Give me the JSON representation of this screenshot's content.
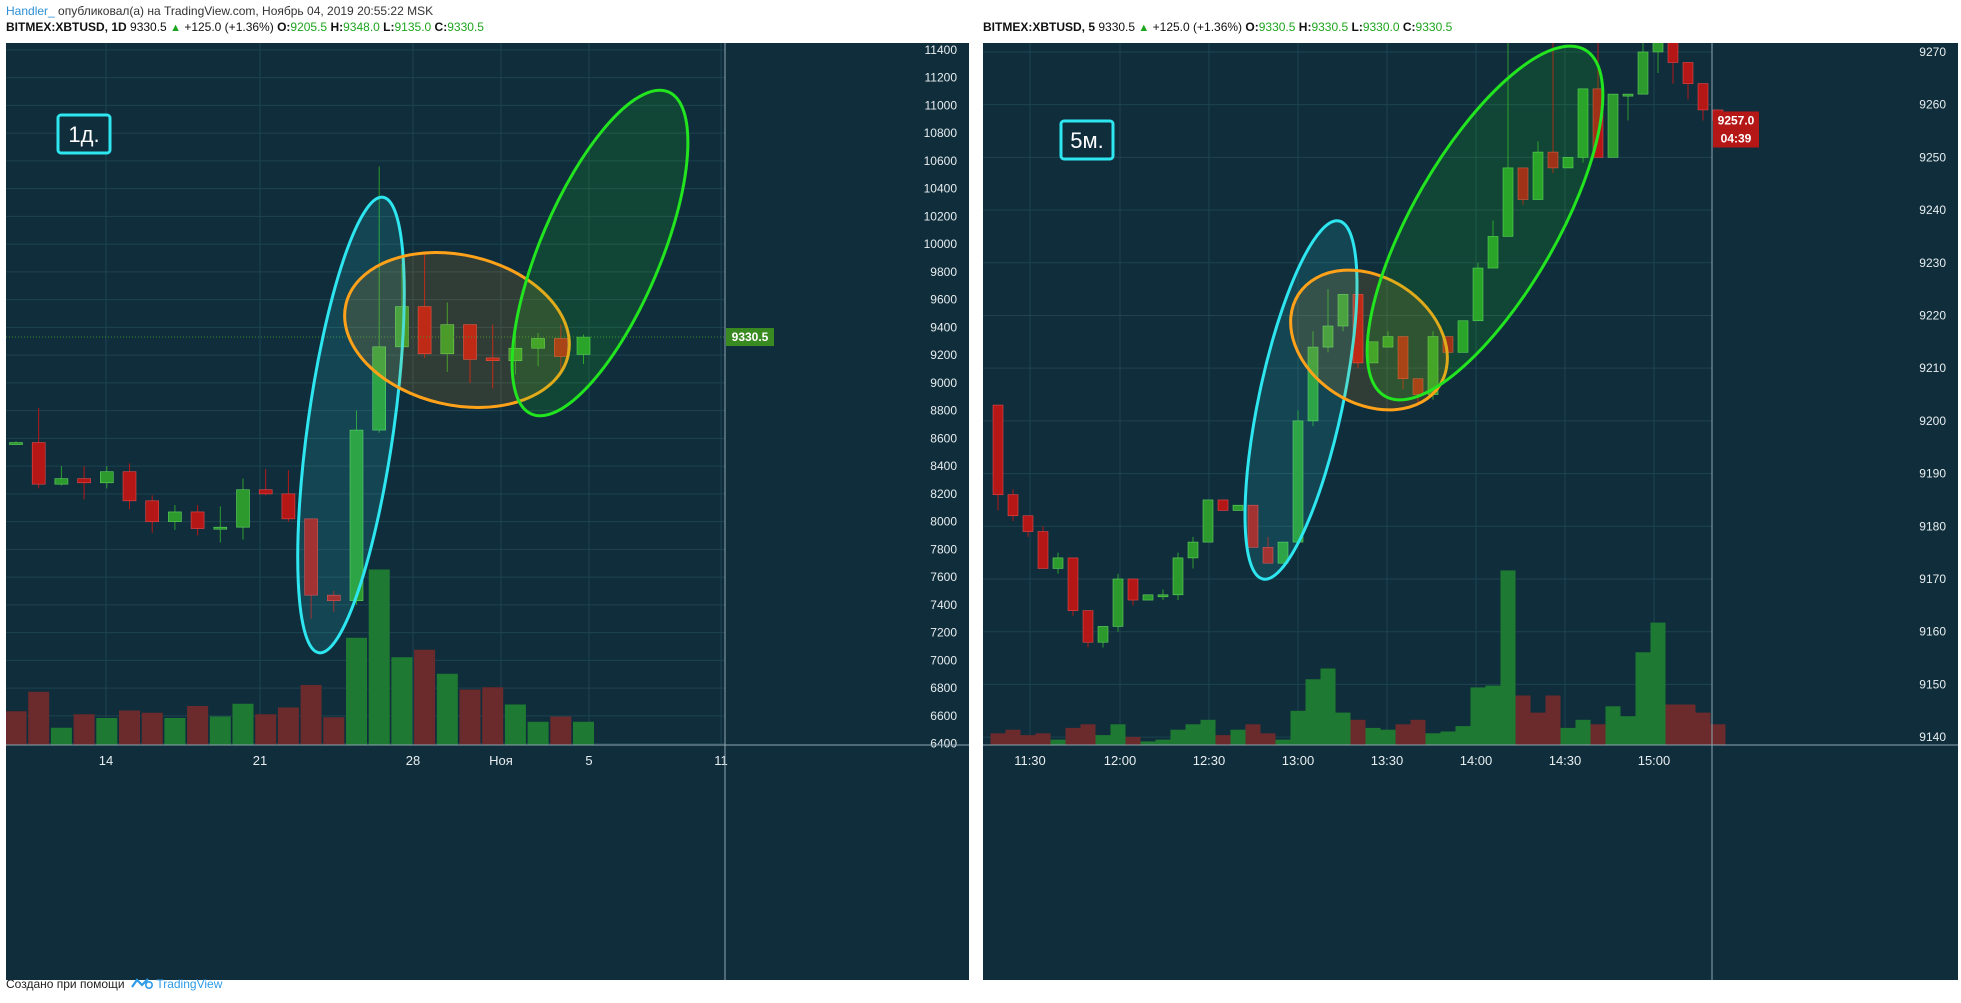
{
  "topbar": {
    "user": "Handler_",
    "text": "опубликовал(а) на TradingView.com, Ноябрь 04, 2019 20:55:22 MSK"
  },
  "left_header": {
    "symbol": "BITMEX:XBTUSD, 1D",
    "price": "9330.5",
    "change": "+125.0 (+1.36%)",
    "o_label": "O:",
    "o": "9205.5",
    "h_label": "H:",
    "h": "9348.0",
    "l_label": "L:",
    "l": "9135.0",
    "c_label": "C:",
    "c": "9330.5"
  },
  "right_header": {
    "symbol": "BITMEX:XBTUSD, 5",
    "price": "9330.5",
    "change": "+125.0 (+1.36%)",
    "o_label": "O:",
    "o": "9330.5",
    "h_label": "H:",
    "h": "9330.5",
    "l_label": "L:",
    "l": "9330.0",
    "c_label": "C:",
    "c": "9330.5"
  },
  "footer": {
    "created_with": "Создано при помощи",
    "brand": "TradingView"
  },
  "colors": {
    "background": "#0f2d3b",
    "grid": "#1f4350",
    "up": "#2d9a2d",
    "down": "#b51717",
    "vol_up": "#1e7a32",
    "vol_down": "#6b2a2c",
    "cyan": "#2ee6f0",
    "orange": "#ffa21a",
    "green_ellipse": "#22e41f",
    "axis_text": "#e8eef0",
    "price_label_left": "#3a8a22",
    "price_label_right": "#b51717"
  },
  "chart_data": [
    {
      "type": "candlestick",
      "timeframe": "1D",
      "annotation_label": "1д.",
      "x_ticks": [
        "14",
        "21",
        "28",
        "Ноя",
        "5",
        "11"
      ],
      "y_ticks": [
        6400,
        6600,
        6800,
        7000,
        7200,
        7400,
        7600,
        7800,
        8000,
        8200,
        8400,
        8600,
        8800,
        9000,
        9200,
        9400,
        9600,
        9800,
        10000,
        10200,
        10400,
        10600,
        10800,
        11000,
        11200,
        11400
      ],
      "ylim": [
        6390,
        11450
      ],
      "last_price_label": "9330.5",
      "candles": [
        {
          "o": 8565,
          "h": 8580,
          "l": 8560,
          "c": 8570
        },
        {
          "o": 8570,
          "h": 8820,
          "l": 8240,
          "c": 8270
        },
        {
          "o": 8270,
          "h": 8400,
          "l": 8260,
          "c": 8310
        },
        {
          "o": 8310,
          "h": 8400,
          "l": 8160,
          "c": 8280
        },
        {
          "o": 8280,
          "h": 8400,
          "l": 8240,
          "c": 8360
        },
        {
          "o": 8360,
          "h": 8420,
          "l": 8090,
          "c": 8150
        },
        {
          "o": 8150,
          "h": 8190,
          "l": 7920,
          "c": 8000
        },
        {
          "o": 8000,
          "h": 8120,
          "l": 7940,
          "c": 8070
        },
        {
          "o": 8070,
          "h": 8120,
          "l": 7900,
          "c": 7950
        },
        {
          "o": 7960,
          "h": 8110,
          "l": 7850,
          "c": 7960
        },
        {
          "o": 7960,
          "h": 8310,
          "l": 7870,
          "c": 8230
        },
        {
          "o": 8230,
          "h": 8380,
          "l": 8190,
          "c": 8200
        },
        {
          "o": 8200,
          "h": 8370,
          "l": 8000,
          "c": 8020
        },
        {
          "o": 8020,
          "h": 8020,
          "l": 7300,
          "c": 7470
        },
        {
          "o": 7470,
          "h": 7500,
          "l": 7350,
          "c": 7430
        },
        {
          "o": 7430,
          "h": 8800,
          "l": 7400,
          "c": 8660
        },
        {
          "o": 8660,
          "h": 10560,
          "l": 8640,
          "c": 9260
        },
        {
          "o": 9260,
          "h": 9860,
          "l": 9220,
          "c": 9550
        },
        {
          "o": 9550,
          "h": 9940,
          "l": 9180,
          "c": 9210
        },
        {
          "o": 9210,
          "h": 9580,
          "l": 9080,
          "c": 9420
        },
        {
          "o": 9420,
          "h": 9420,
          "l": 9000,
          "c": 9170
        },
        {
          "o": 9180,
          "h": 9420,
          "l": 8960,
          "c": 9160
        },
        {
          "o": 9160,
          "h": 9380,
          "l": 9060,
          "c": 9250
        },
        {
          "o": 9250,
          "h": 9360,
          "l": 9120,
          "c": 9320
        },
        {
          "o": 9320,
          "h": 9420,
          "l": 9080,
          "c": 9190
        },
        {
          "o": 9205,
          "h": 9348,
          "l": 9135,
          "c": 9330
        }
      ],
      "volume": [
        {
          "v": 0.45,
          "up": false
        },
        {
          "v": 0.71,
          "up": false
        },
        {
          "v": 0.23,
          "up": true
        },
        {
          "v": 0.41,
          "up": false
        },
        {
          "v": 0.36,
          "up": true
        },
        {
          "v": 0.46,
          "up": false
        },
        {
          "v": 0.43,
          "up": false
        },
        {
          "v": 0.36,
          "up": true
        },
        {
          "v": 0.52,
          "up": false
        },
        {
          "v": 0.38,
          "up": true
        },
        {
          "v": 0.55,
          "up": true
        },
        {
          "v": 0.41,
          "up": false
        },
        {
          "v": 0.5,
          "up": false
        },
        {
          "v": 0.8,
          "up": false
        },
        {
          "v": 0.37,
          "up": false
        },
        {
          "v": 1.43,
          "up": true
        },
        {
          "v": 2.34,
          "up": true
        },
        {
          "v": 1.17,
          "up": true
        },
        {
          "v": 1.27,
          "up": false
        },
        {
          "v": 0.95,
          "up": true
        },
        {
          "v": 0.74,
          "up": false
        },
        {
          "v": 0.77,
          "up": false
        },
        {
          "v": 0.54,
          "up": true
        },
        {
          "v": 0.31,
          "up": true
        },
        {
          "v": 0.38,
          "up": false
        },
        {
          "v": 0.31,
          "up": true
        }
      ]
    },
    {
      "type": "candlestick",
      "timeframe": "5",
      "annotation_label": "5м.",
      "x_ticks": [
        "11:30",
        "12:00",
        "12:30",
        "13:00",
        "13:30",
        "14:00",
        "14:30",
        "15:00"
      ],
      "y_ticks": [
        9140,
        9150,
        9160,
        9170,
        9180,
        9190,
        9200,
        9210,
        9220,
        9230,
        9240,
        9250,
        9260,
        9270
      ],
      "ylim": [
        9138.5,
        9271.7
      ],
      "last_price_label": "9257.0",
      "countdown_label": "04:39",
      "candles": [
        {
          "o": 9203,
          "h": 9203,
          "l": 9183,
          "c": 9186
        },
        {
          "o": 9186,
          "h": 9187,
          "l": 9181,
          "c": 9182
        },
        {
          "o": 9182,
          "h": 9182,
          "l": 9178,
          "c": 9179
        },
        {
          "o": 9179,
          "h": 9180,
          "l": 9172,
          "c": 9172
        },
        {
          "o": 9172,
          "h": 9175,
          "l": 9171,
          "c": 9174
        },
        {
          "o": 9174,
          "h": 9174,
          "l": 9163,
          "c": 9164
        },
        {
          "o": 9164,
          "h": 9164,
          "l": 9157,
          "c": 9158
        },
        {
          "o": 9158,
          "h": 9161,
          "l": 9157,
          "c": 9161
        },
        {
          "o": 9161,
          "h": 9171,
          "l": 9160,
          "c": 9170
        },
        {
          "o": 9170,
          "h": 9170,
          "l": 9165,
          "c": 9166
        },
        {
          "o": 9166,
          "h": 9167,
          "l": 9166,
          "c": 9167
        },
        {
          "o": 9167,
          "h": 9168,
          "l": 9166,
          "c": 9167
        },
        {
          "o": 9167,
          "h": 9175,
          "l": 9166,
          "c": 9174
        },
        {
          "o": 9174,
          "h": 9178,
          "l": 9172,
          "c": 9177
        },
        {
          "o": 9177,
          "h": 9185,
          "l": 9177,
          "c": 9185
        },
        {
          "o": 9185,
          "h": 9185,
          "l": 9183,
          "c": 9183
        },
        {
          "o": 9183,
          "h": 9184,
          "l": 9183,
          "c": 9184
        },
        {
          "o": 9184,
          "h": 9184,
          "l": 9176,
          "c": 9176
        },
        {
          "o": 9176,
          "h": 9178,
          "l": 9173,
          "c": 9173
        },
        {
          "o": 9173,
          "h": 9177,
          "l": 9173,
          "c": 9177
        },
        {
          "o": 9177,
          "h": 9202,
          "l": 9177,
          "c": 9200
        },
        {
          "o": 9200,
          "h": 9217,
          "l": 9199,
          "c": 9214
        },
        {
          "o": 9214,
          "h": 9225,
          "l": 9213,
          "c": 9218
        },
        {
          "o": 9218,
          "h": 9224,
          "l": 9217,
          "c": 9224
        },
        {
          "o": 9224,
          "h": 9225,
          "l": 9210,
          "c": 9211
        },
        {
          "o": 9211,
          "h": 9215,
          "l": 9211,
          "c": 9215
        },
        {
          "o": 9214,
          "h": 9217,
          "l": 9214,
          "c": 9216
        },
        {
          "o": 9216,
          "h": 9216,
          "l": 9206,
          "c": 9208
        },
        {
          "o": 9208,
          "h": 9208,
          "l": 9203,
          "c": 9205
        },
        {
          "o": 9205,
          "h": 9217,
          "l": 9204,
          "c": 9216
        },
        {
          "o": 9216,
          "h": 9216,
          "l": 9213,
          "c": 9213
        },
        {
          "o": 9213,
          "h": 9219,
          "l": 9213,
          "c": 9219
        },
        {
          "o": 9219,
          "h": 9230,
          "l": 9219,
          "c": 9229
        },
        {
          "o": 9229,
          "h": 9238,
          "l": 9229,
          "c": 9235
        },
        {
          "o": 9235,
          "h": 9276,
          "l": 9235,
          "c": 9248
        },
        {
          "o": 9248,
          "h": 9248,
          "l": 9241,
          "c": 9242
        },
        {
          "o": 9242,
          "h": 9253,
          "l": 9242,
          "c": 9251
        },
        {
          "o": 9251,
          "h": 9274,
          "l": 9247,
          "c": 9248
        },
        {
          "o": 9248,
          "h": 9250,
          "l": 9248,
          "c": 9250
        },
        {
          "o": 9250,
          "h": 9262,
          "l": 9249,
          "c": 9263
        },
        {
          "o": 9263,
          "h": 9280,
          "l": 9251,
          "c": 9250
        },
        {
          "o": 9250,
          "h": 9262,
          "l": 9250,
          "c": 9262
        },
        {
          "o": 9262,
          "h": 9262,
          "l": 9257,
          "c": 9262
        },
        {
          "o": 9262,
          "h": 9276,
          "l": 9262,
          "c": 9270
        },
        {
          "o": 9270,
          "h": 9276,
          "l": 9266,
          "c": 9272
        },
        {
          "o": 9272,
          "h": 9275,
          "l": 9264,
          "c": 9268
        },
        {
          "o": 9268,
          "h": 9268,
          "l": 9261,
          "c": 9264
        },
        {
          "o": 9264,
          "h": 9264,
          "l": 9257,
          "c": 9259
        },
        {
          "o": 9259,
          "h": 9259,
          "l": 9257,
          "c": 9257
        }
      ],
      "volume": [
        {
          "v": 0.13,
          "up": false
        },
        {
          "v": 0.17,
          "up": false
        },
        {
          "v": 0.11,
          "up": false
        },
        {
          "v": 0.13,
          "up": false
        },
        {
          "v": 0.06,
          "up": true
        },
        {
          "v": 0.19,
          "up": false
        },
        {
          "v": 0.23,
          "up": false
        },
        {
          "v": 0.11,
          "up": true
        },
        {
          "v": 0.23,
          "up": true
        },
        {
          "v": 0.09,
          "up": false
        },
        {
          "v": 0.04,
          "up": true
        },
        {
          "v": 0.06,
          "up": true
        },
        {
          "v": 0.17,
          "up": true
        },
        {
          "v": 0.23,
          "up": true
        },
        {
          "v": 0.28,
          "up": true
        },
        {
          "v": 0.11,
          "up": false
        },
        {
          "v": 0.17,
          "up": true
        },
        {
          "v": 0.23,
          "up": false
        },
        {
          "v": 0.13,
          "up": false
        },
        {
          "v": 0.06,
          "up": true
        },
        {
          "v": 0.38,
          "up": true
        },
        {
          "v": 0.73,
          "up": true
        },
        {
          "v": 0.85,
          "up": true
        },
        {
          "v": 0.36,
          "up": true
        },
        {
          "v": 0.28,
          "up": false
        },
        {
          "v": 0.19,
          "up": true
        },
        {
          "v": 0.17,
          "up": true
        },
        {
          "v": 0.23,
          "up": false
        },
        {
          "v": 0.28,
          "up": false
        },
        {
          "v": 0.13,
          "up": true
        },
        {
          "v": 0.15,
          "up": true
        },
        {
          "v": 0.21,
          "up": true
        },
        {
          "v": 0.64,
          "up": true
        },
        {
          "v": 0.66,
          "up": true
        },
        {
          "v": 1.94,
          "up": true
        },
        {
          "v": 0.55,
          "up": false
        },
        {
          "v": 0.36,
          "up": false
        },
        {
          "v": 0.55,
          "up": false
        },
        {
          "v": 0.19,
          "up": true
        },
        {
          "v": 0.28,
          "up": true
        },
        {
          "v": 0.23,
          "up": false
        },
        {
          "v": 0.43,
          "up": true
        },
        {
          "v": 0.32,
          "up": true
        },
        {
          "v": 1.03,
          "up": true
        },
        {
          "v": 1.36,
          "up": true
        },
        {
          "v": 0.45,
          "up": false
        },
        {
          "v": 0.45,
          "up": false
        },
        {
          "v": 0.36,
          "up": false
        },
        {
          "v": 0.23,
          "up": false
        }
      ]
    }
  ]
}
